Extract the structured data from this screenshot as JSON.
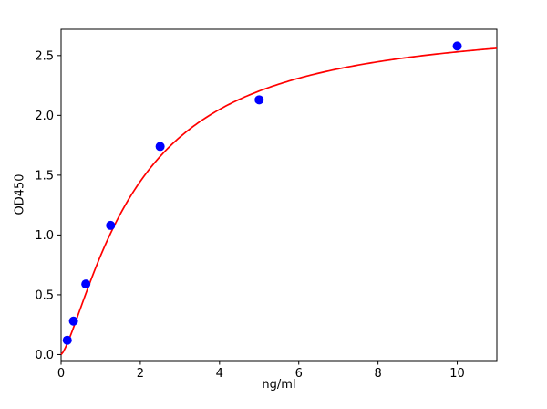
{
  "chart_data": {
    "type": "scatter",
    "title": "",
    "xlabel": "ng/ml",
    "ylabel": "OD450",
    "xlim": [
      0,
      11
    ],
    "ylim": [
      -0.05,
      2.72
    ],
    "x_ticks": [
      0,
      2,
      4,
      6,
      8,
      10
    ],
    "x_tick_labels": [
      "0",
      "2",
      "4",
      "6",
      "8",
      "10"
    ],
    "y_ticks": [
      0.0,
      0.5,
      1.0,
      1.5,
      2.0,
      2.5
    ],
    "y_tick_labels": [
      "0.0",
      "0.5",
      "1.0",
      "1.5",
      "2.0",
      "2.5"
    ],
    "grid": false,
    "legend": null,
    "points": {
      "name": "standards",
      "x": [
        0.156,
        0.313,
        0.625,
        1.25,
        2.5,
        5.0,
        10.0
      ],
      "y": [
        0.12,
        0.28,
        0.59,
        1.08,
        1.74,
        2.13,
        2.58
      ],
      "color": "#0000ff",
      "radius": 5
    },
    "curve": {
      "name": "fit-curve",
      "model": "y = d * x^b / (c^b + x^b)",
      "params": {
        "d": 2.8,
        "c": 1.9,
        "b": 1.35
      },
      "color": "#ff0000",
      "width": 1.7,
      "x_start": 0,
      "x_end": 11
    },
    "axis_color": "#000000",
    "background_color": "#ffffff"
  }
}
